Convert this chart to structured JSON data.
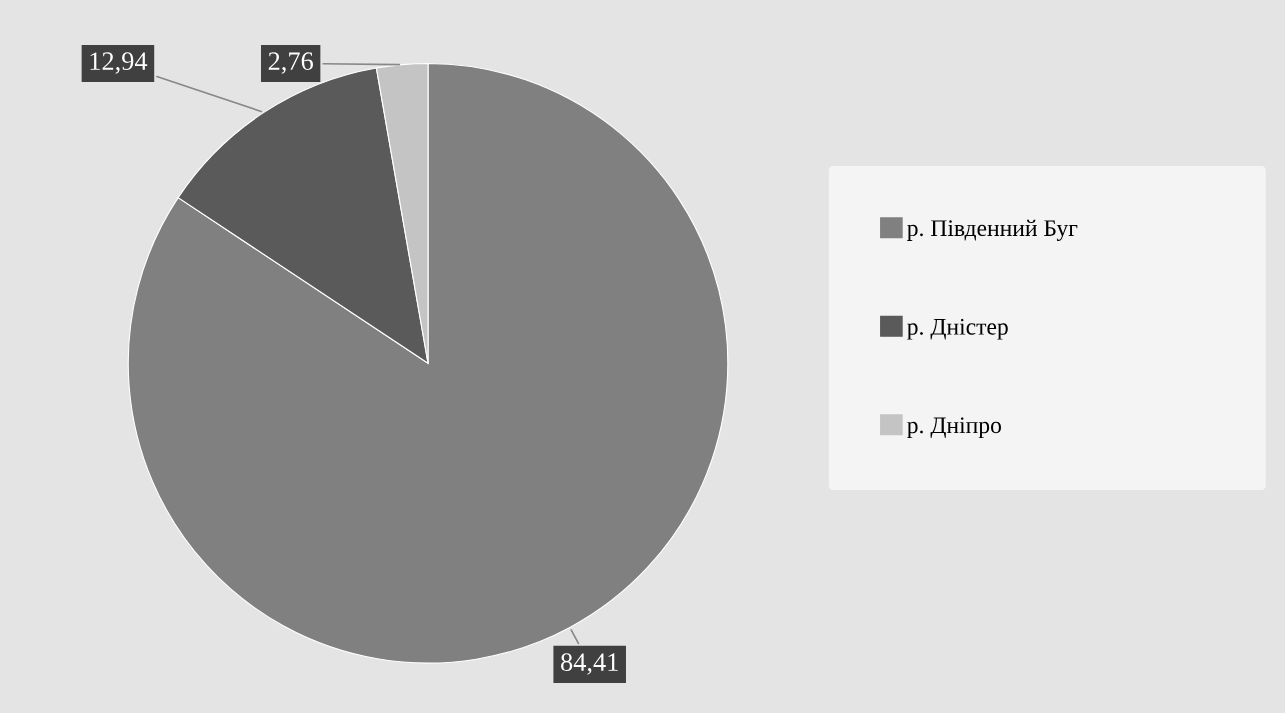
{
  "chart_data": {
    "type": "pie",
    "categories": [
      "р. Південний Буг",
      "р. Дністер",
      "р. Дніпро"
    ],
    "values": [
      84.41,
      12.94,
      2.76
    ],
    "value_labels": [
      "84,41",
      "12,94",
      "2,76"
    ],
    "colors": [
      "#808080",
      "#5a5a5a",
      "#c4c4c4"
    ],
    "legend": "right"
  }
}
